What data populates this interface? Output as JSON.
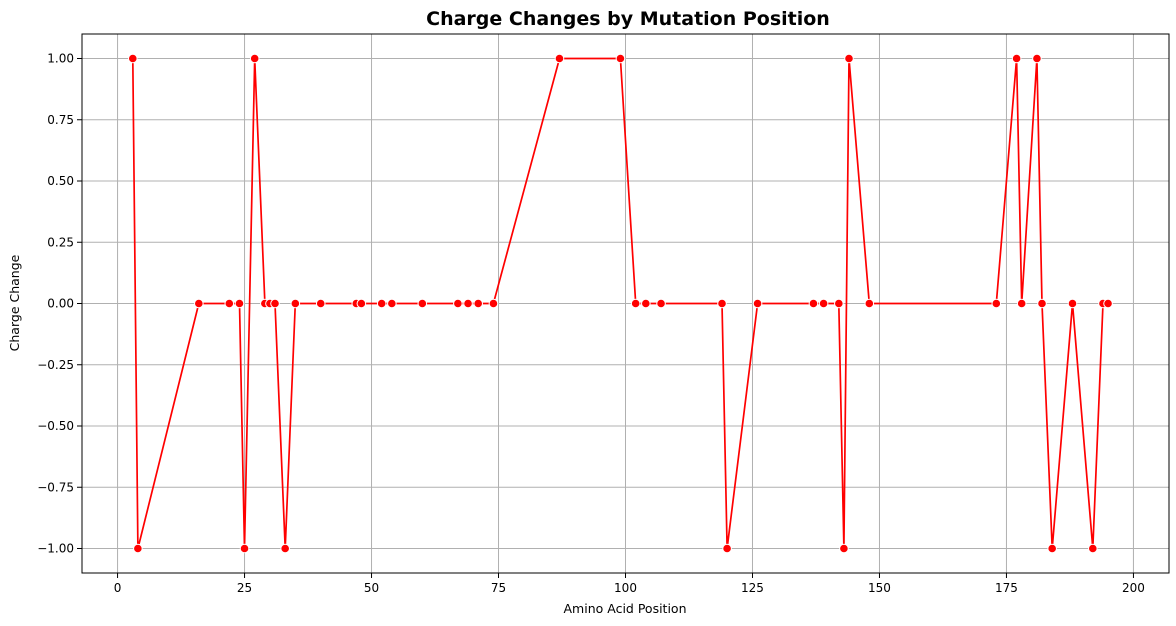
{
  "chart_data": {
    "type": "line",
    "title": "Charge Changes by Mutation Position",
    "xlabel": "Amino Acid Position",
    "ylabel": "Charge Change",
    "xlim": [
      -7,
      207
    ],
    "ylim": [
      -1.1,
      1.1
    ],
    "xticks": [
      0,
      25,
      50,
      75,
      100,
      125,
      150,
      175,
      200
    ],
    "xtick_labels": [
      "0",
      "25",
      "50",
      "75",
      "100",
      "125",
      "150",
      "175",
      "200"
    ],
    "yticks": [
      -1.0,
      -0.75,
      -0.5,
      -0.25,
      0.0,
      0.25,
      0.5,
      0.75,
      1.0
    ],
    "ytick_labels": [
      "−1.00",
      "−0.75",
      "−0.50",
      "−0.25",
      "0.00",
      "0.25",
      "0.50",
      "0.75",
      "1.00"
    ],
    "grid": true,
    "colors": {
      "line": "#ff0000",
      "marker": "#ff0000",
      "marker_edge": "#ffffff",
      "grid": "#b0b0b0"
    },
    "series": [
      {
        "x": [
          3,
          4,
          16,
          22,
          24,
          25,
          27,
          29,
          30,
          31,
          33,
          35,
          40,
          47,
          48,
          52,
          54,
          60,
          67,
          69,
          71,
          74,
          87,
          99,
          102,
          104,
          107,
          119,
          120,
          126,
          137,
          139,
          142,
          143,
          144,
          148,
          173,
          177,
          178,
          181,
          182,
          184,
          188,
          192,
          194,
          195
        ],
        "y": [
          1,
          -1,
          0,
          0,
          0,
          -1,
          1,
          0,
          0,
          0,
          -1,
          0,
          0,
          0,
          0,
          0,
          0,
          0,
          0,
          0,
          0,
          0,
          1,
          1,
          0,
          0,
          0,
          0,
          -1,
          0,
          0,
          0,
          0,
          -1,
          1,
          0,
          0,
          1,
          0,
          1,
          0,
          -1,
          0,
          -1,
          0,
          0
        ]
      }
    ]
  }
}
